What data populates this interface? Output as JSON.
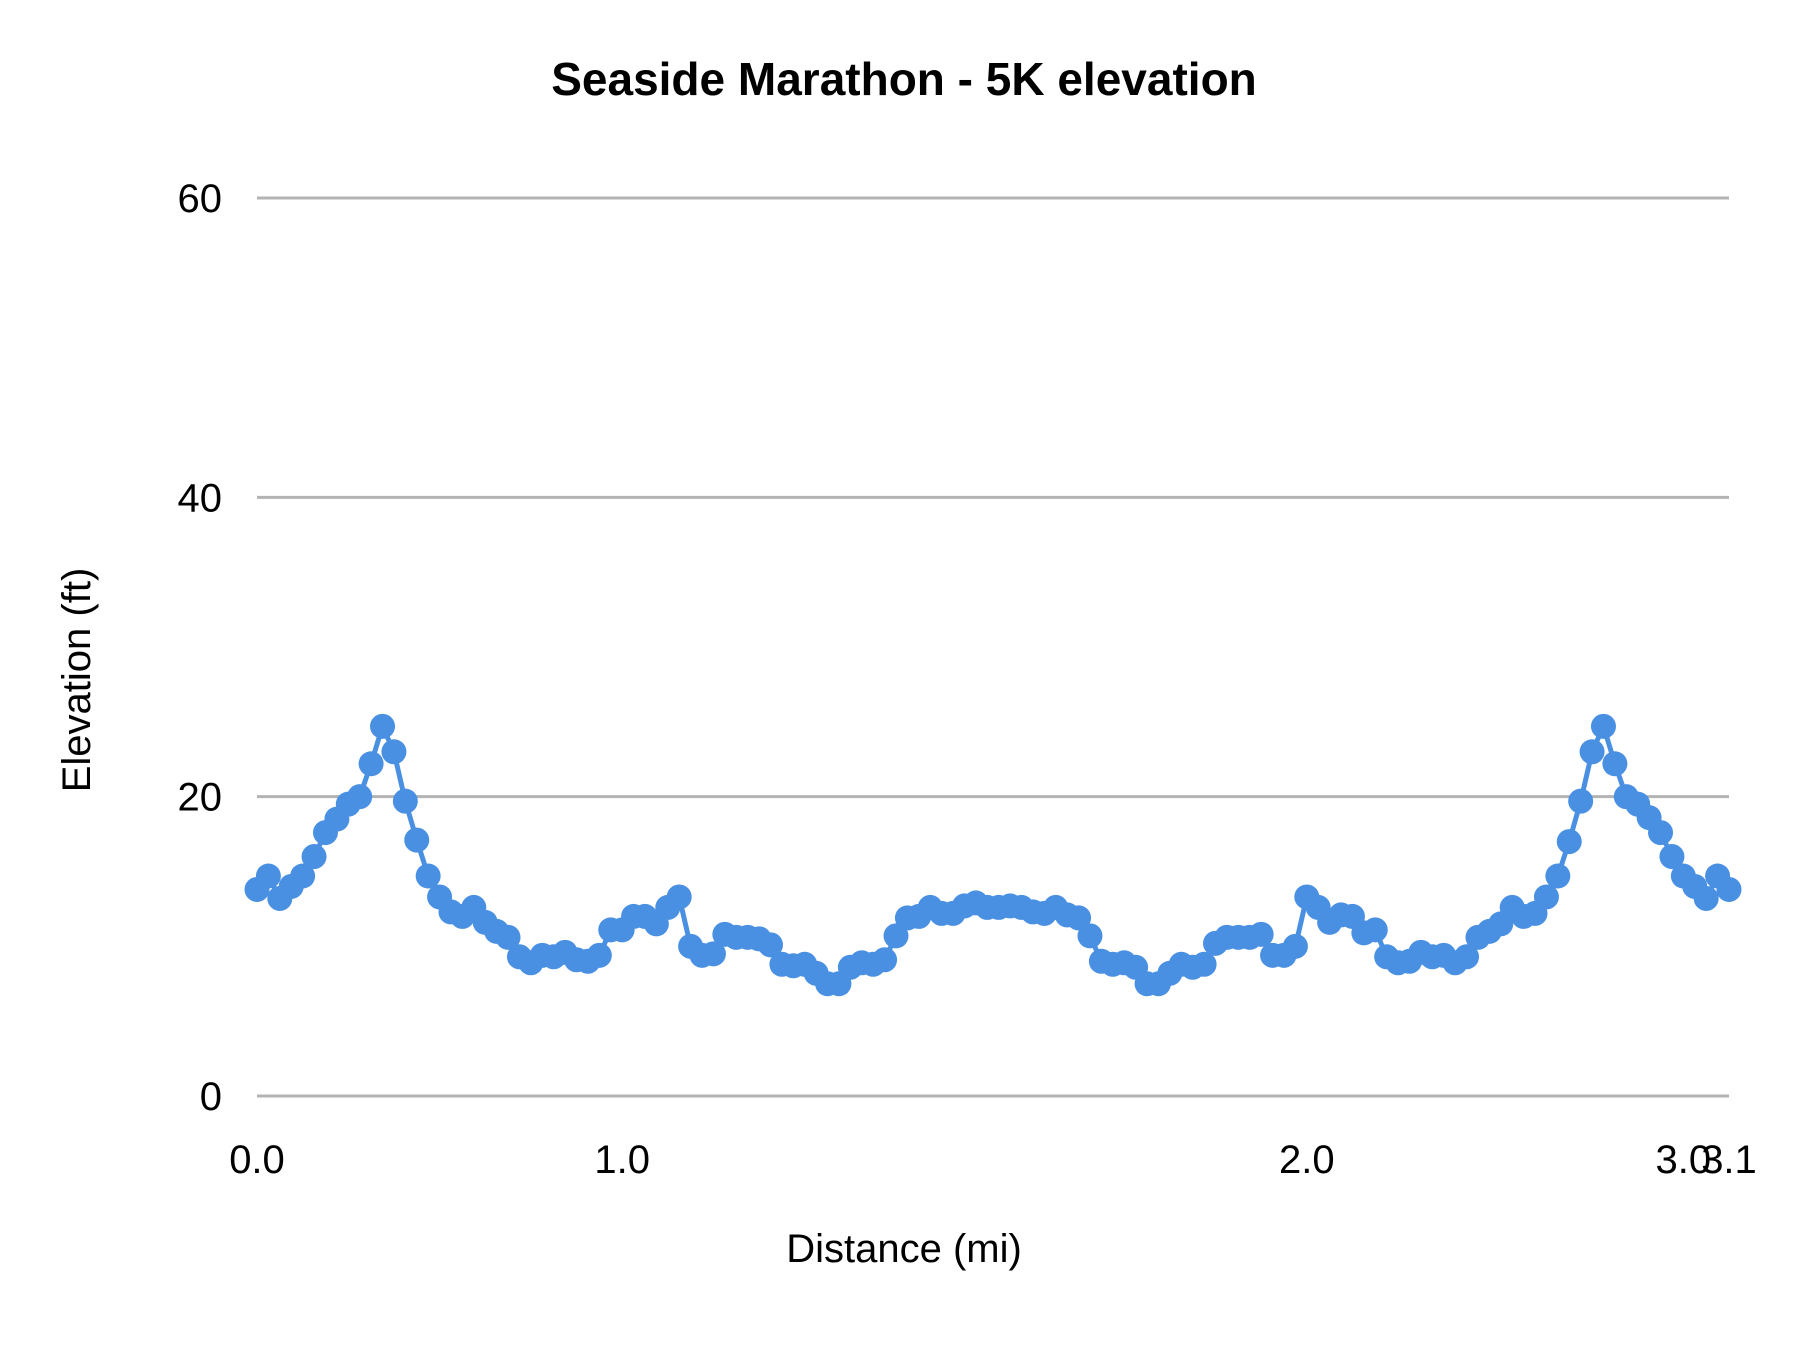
{
  "chart_data": {
    "type": "line",
    "title": "Seaside Marathon - 5K elevation",
    "xlabel": "Distance (mi)",
    "ylabel": "Elevation (ft)",
    "ylim": [
      0,
      60
    ],
    "y_ticks": [
      "0",
      "20",
      "40",
      "60"
    ],
    "y_tick_values": [
      0,
      20,
      40,
      60
    ],
    "x_axis": "category",
    "x_ticks": [
      {
        "label": "0.0",
        "index": 0
      },
      {
        "label": "1.0",
        "index": 32
      },
      {
        "label": "2.0",
        "index": 92
      },
      {
        "label": "3.0",
        "index": 125
      },
      {
        "label": "3.1",
        "index": 129
      }
    ],
    "grid": true,
    "legend": "none",
    "color": "#4a90e2",
    "markers": true,
    "series": [
      {
        "values": [
          13.8,
          14.7,
          13.2,
          14.0,
          14.7,
          16.0,
          17.6,
          18.5,
          19.5,
          20.0,
          22.2,
          24.7,
          23.0,
          19.7,
          17.1,
          14.7,
          13.3,
          12.3,
          12.0,
          12.6,
          11.6,
          11.0,
          10.6,
          9.3,
          8.9,
          9.4,
          9.3,
          9.6,
          9.1,
          9.0,
          9.4,
          11.1,
          11.1,
          12.0,
          12.0,
          11.5,
          12.6,
          13.3,
          10.0,
          9.4,
          9.5,
          10.8,
          10.6,
          10.6,
          10.5,
          10.1,
          8.8,
          8.7,
          8.8,
          8.2,
          7.5,
          7.5,
          8.6,
          8.9,
          8.8,
          9.1,
          10.7,
          11.9,
          12.0,
          12.6,
          12.2,
          12.2,
          12.7,
          12.9,
          12.6,
          12.6,
          12.7,
          12.6,
          12.3,
          12.2,
          12.6,
          12.1,
          11.9,
          10.7,
          9.0,
          8.8,
          8.9,
          8.6,
          7.5,
          7.5,
          8.2,
          8.8,
          8.6,
          8.8,
          10.2,
          10.6,
          10.6,
          10.6,
          10.8,
          9.4,
          9.4,
          10.0,
          13.3,
          12.6,
          11.6,
          12.1,
          12.0,
          10.9,
          11.1,
          9.3,
          8.9,
          9.0,
          9.6,
          9.3,
          9.4,
          8.9,
          9.3,
          10.6,
          11.0,
          11.5,
          12.6,
          12.0,
          12.2,
          13.3,
          14.7,
          17.0,
          19.7,
          23.0,
          24.7,
          22.2,
          20.0,
          19.5,
          18.6,
          17.6,
          16.0,
          14.7,
          14.0,
          13.2,
          14.7,
          13.8
        ]
      }
    ]
  }
}
